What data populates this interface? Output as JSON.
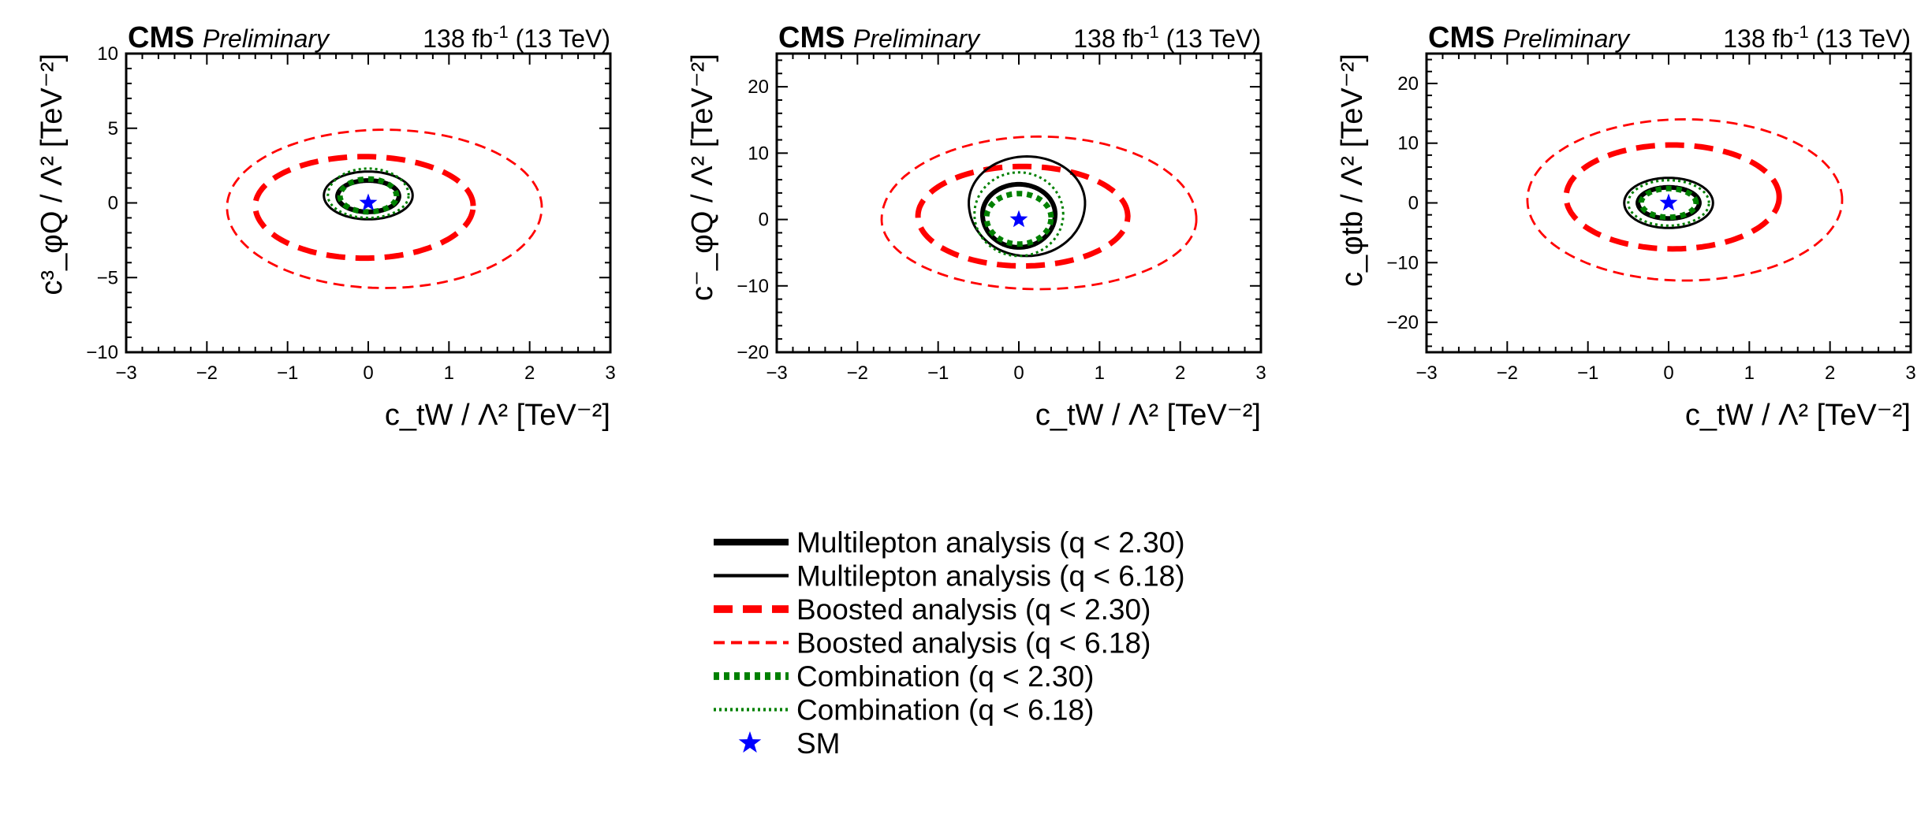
{
  "colors": {
    "multilepton": "#000000",
    "boosted": "#ff0000",
    "combination": "#008000",
    "sm": "#0000ff"
  },
  "chart_data": [
    {
      "type": "line",
      "cms_label": "CMS",
      "cms_subtitle": "Preliminary",
      "lumi_value": "138 fb",
      "lumi_exp": "-1",
      "energy": "(13 TeV)",
      "xlabel": "c_tW / Λ² [TeV⁻²]",
      "ylabel": "c³_φQ / Λ² [TeV⁻²]",
      "xlim": [
        -3,
        3
      ],
      "ylim": [
        -10,
        10
      ],
      "xticks": [
        -3,
        -2,
        -1,
        0,
        1,
        2,
        3
      ],
      "yticks": [
        -10,
        -5,
        0,
        5,
        10
      ],
      "xtick_labels": [
        "−3",
        "−2",
        "−1",
        "0",
        "1",
        "2",
        "3"
      ],
      "ytick_labels": [
        "−10",
        "−5",
        "0",
        "5",
        "10"
      ],
      "sm_point": [
        0,
        0
      ],
      "contours": [
        {
          "series": "boosted_618",
          "center": [
            0.2,
            -0.3
          ],
          "rx": 1.95,
          "ry_up": 5.2,
          "ry_down": 5.4
        },
        {
          "series": "boosted_230",
          "center": [
            -0.05,
            -0.2
          ],
          "rx": 1.35,
          "ry_up": 3.3,
          "ry_down": 3.5
        },
        {
          "series": "multi_618",
          "center": [
            0,
            0.5
          ],
          "rx": 0.55,
          "ry_up": 1.6,
          "ry_down": 1.6
        },
        {
          "series": "multi_230",
          "center": [
            0,
            0.45
          ],
          "rx": 0.38,
          "ry_up": 1.05,
          "ry_down": 1.05
        },
        {
          "series": "comb_618",
          "center": [
            0,
            0.5
          ],
          "rx": 0.5,
          "ry_up": 1.8,
          "ry_down": 1.5
        },
        {
          "series": "comb_230",
          "center": [
            0,
            0.45
          ],
          "rx": 0.35,
          "ry_up": 1.15,
          "ry_down": 1.05
        }
      ]
    },
    {
      "type": "line",
      "cms_label": "CMS",
      "cms_subtitle": "Preliminary",
      "lumi_value": "138 fb",
      "lumi_exp": "-1",
      "energy": "(13 TeV)",
      "xlabel": "c_tW / Λ² [TeV⁻²]",
      "ylabel": "c⁻_φQ / Λ² [TeV⁻²]",
      "xlim": [
        -3,
        3
      ],
      "ylim": [
        -20,
        25
      ],
      "xticks": [
        -3,
        -2,
        -1,
        0,
        1,
        2,
        3
      ],
      "yticks": [
        -20,
        -10,
        0,
        10,
        20
      ],
      "xtick_labels": [
        "−3",
        "−2",
        "−1",
        "0",
        "1",
        "2",
        "3"
      ],
      "ytick_labels": [
        "−20",
        "−10",
        "0",
        "10",
        "20"
      ],
      "sm_point": [
        0,
        0
      ],
      "contours": [
        {
          "series": "boosted_618",
          "center": [
            0.25,
            0
          ],
          "rx": 1.95,
          "ry_up": 12.5,
          "ry_down": 10.5
        },
        {
          "series": "boosted_230",
          "center": [
            0.05,
            0.5
          ],
          "rx": 1.3,
          "ry_up": 7.5,
          "ry_down": 7.5
        },
        {
          "series": "multi_618",
          "center": [
            0.1,
            2.5
          ],
          "rx": 0.72,
          "ry_up": 7.0,
          "ry_down": 8.0
        },
        {
          "series": "multi_230",
          "center": [
            0,
            0.8
          ],
          "rx": 0.45,
          "ry_up": 4.5,
          "ry_down": 5.0
        },
        {
          "series": "comb_618",
          "center": [
            0,
            0.8
          ],
          "rx": 0.55,
          "ry_up": 6.3,
          "ry_down": 6.3
        },
        {
          "series": "comb_230",
          "center": [
            0,
            0.3
          ],
          "rx": 0.4,
          "ry_up": 3.6,
          "ry_down": 4.0
        }
      ]
    },
    {
      "type": "line",
      "cms_label": "CMS",
      "cms_subtitle": "Preliminary",
      "lumi_value": "138 fb",
      "lumi_exp": "-1",
      "energy": "(13 TeV)",
      "xlabel": "c_tW / Λ² [TeV⁻²]",
      "ylabel": "c_φtb / Λ² [TeV⁻²]",
      "xlim": [
        -3,
        3
      ],
      "ylim": [
        -25,
        25
      ],
      "xticks": [
        -3,
        -2,
        -1,
        0,
        1,
        2,
        3
      ],
      "yticks": [
        -20,
        -10,
        0,
        10,
        20
      ],
      "xtick_labels": [
        "−3",
        "−2",
        "−1",
        "0",
        "1",
        "2",
        "3"
      ],
      "ytick_labels": [
        "−20",
        "−10",
        "0",
        "10",
        "20"
      ],
      "sm_point": [
        0,
        0
      ],
      "contours": [
        {
          "series": "boosted_618",
          "center": [
            0.2,
            0.5
          ],
          "rx": 1.95,
          "ry_up": 13.5,
          "ry_down": 13.5
        },
        {
          "series": "boosted_230",
          "center": [
            0.05,
            1.0
          ],
          "rx": 1.32,
          "ry_up": 8.7,
          "ry_down": 8.7
        },
        {
          "series": "multi_618",
          "center": [
            0,
            0
          ],
          "rx": 0.55,
          "ry_up": 4.2,
          "ry_down": 4.2
        },
        {
          "series": "multi_230",
          "center": [
            0,
            0
          ],
          "rx": 0.38,
          "ry_up": 2.6,
          "ry_down": 2.6
        },
        {
          "series": "comb_618",
          "center": [
            0,
            0
          ],
          "rx": 0.5,
          "ry_up": 3.8,
          "ry_down": 3.8
        },
        {
          "series": "comb_230",
          "center": [
            0,
            0
          ],
          "rx": 0.34,
          "ry_up": 2.4,
          "ry_down": 2.4
        }
      ]
    }
  ],
  "legend": [
    {
      "series": "multi_230",
      "label": "Multilepton analysis (q < 2.30)",
      "marker": "line"
    },
    {
      "series": "multi_618",
      "label": "Multilepton analysis (q < 6.18)",
      "marker": "line"
    },
    {
      "series": "boosted_230",
      "label": "Boosted analysis (q < 2.30)",
      "marker": "line"
    },
    {
      "series": "boosted_618",
      "label": "Boosted analysis (q < 6.18)",
      "marker": "line"
    },
    {
      "series": "comb_230",
      "label": "Combination (q < 2.30)",
      "marker": "line"
    },
    {
      "series": "comb_618",
      "label": "Combination (q < 6.18)",
      "marker": "line"
    },
    {
      "series": "sm",
      "label": "SM",
      "marker": "star"
    }
  ]
}
